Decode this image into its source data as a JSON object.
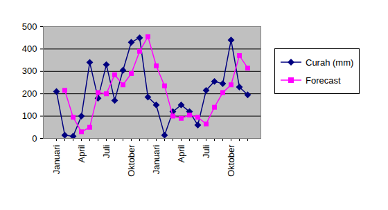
{
  "chart_data": {
    "type": "line",
    "categories": [
      "Januari",
      null,
      null,
      "April",
      null,
      null,
      "Juli",
      null,
      null,
      "Oktober",
      null,
      null,
      "Januari",
      null,
      null,
      "April",
      null,
      null,
      "Juli",
      null,
      null,
      "Oktober",
      null,
      null
    ],
    "series": [
      {
        "name": "Curah (mm)",
        "color": "#000080",
        "marker": "diamond",
        "values": [
          210,
          15,
          10,
          100,
          340,
          180,
          330,
          170,
          305,
          430,
          450,
          185,
          150,
          15,
          120,
          150,
          120,
          60,
          215,
          255,
          245,
          440,
          230,
          195
        ]
      },
      {
        "name": "Forecast",
        "color": "#ff00ff",
        "marker": "square",
        "values": [
          null,
          215,
          95,
          30,
          50,
          205,
          200,
          285,
          240,
          290,
          390,
          455,
          325,
          235,
          100,
          90,
          105,
          95,
          65,
          140,
          205,
          240,
          370,
          315
        ]
      }
    ],
    "ylim": [
      0,
      500
    ],
    "yticks": [
      0,
      100,
      200,
      300,
      400,
      500
    ],
    "grid": true,
    "legend": "right"
  }
}
